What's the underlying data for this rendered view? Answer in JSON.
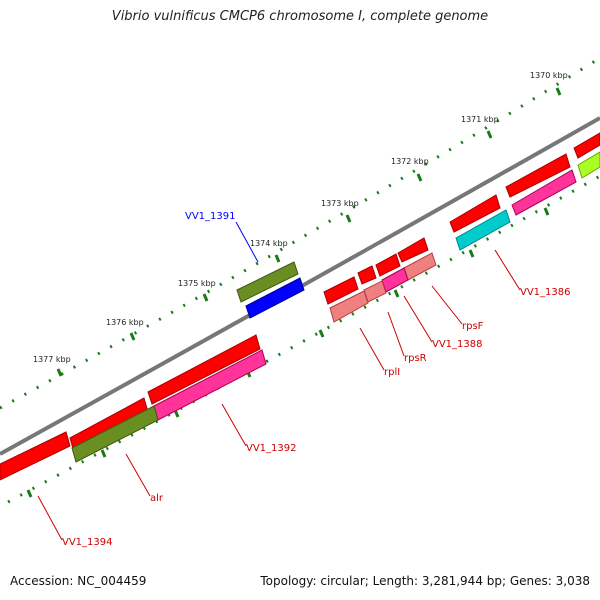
{
  "title": "Vibrio vulnificus CMCP6 chromosome I, complete genome",
  "footer": {
    "accession": "Accession: NC_004459",
    "summary": "Topology: circular; Length: 3,281,944 bp; Genes: 3,038"
  },
  "ticks": [
    "1370 kbp",
    "1371 kbp",
    "1372 kbp",
    "1373 kbp",
    "1374 kbp",
    "1375 kbp",
    "1376 kbp",
    "1377 kbp"
  ],
  "genes": [
    {
      "name": "VV1_1391",
      "color": "#0000ff"
    },
    {
      "name": "VV1_1386",
      "color": "#cc0000"
    },
    {
      "name": "rpsF",
      "color": "#cc0000"
    },
    {
      "name": "VV1_1388",
      "color": "#cc0000"
    },
    {
      "name": "rpsR",
      "color": "#cc0000"
    },
    {
      "name": "rplI",
      "color": "#cc0000"
    },
    {
      "name": "VV1_1392",
      "color": "#cc0000"
    },
    {
      "name": "alr",
      "color": "#cc0000"
    },
    {
      "name": "VV1_1394",
      "color": "#cc0000"
    }
  ],
  "colors": {
    "backbone": "#777777",
    "tick": "#1a7a1a",
    "gene_red": "#ff0000",
    "gene_pink": "#ff3399",
    "gene_salmon": "#f08080",
    "gene_olive": "#6b8e23",
    "gene_blue": "#0000ff",
    "gene_cyan": "#00cccc",
    "gene_lime": "#aaff22"
  }
}
